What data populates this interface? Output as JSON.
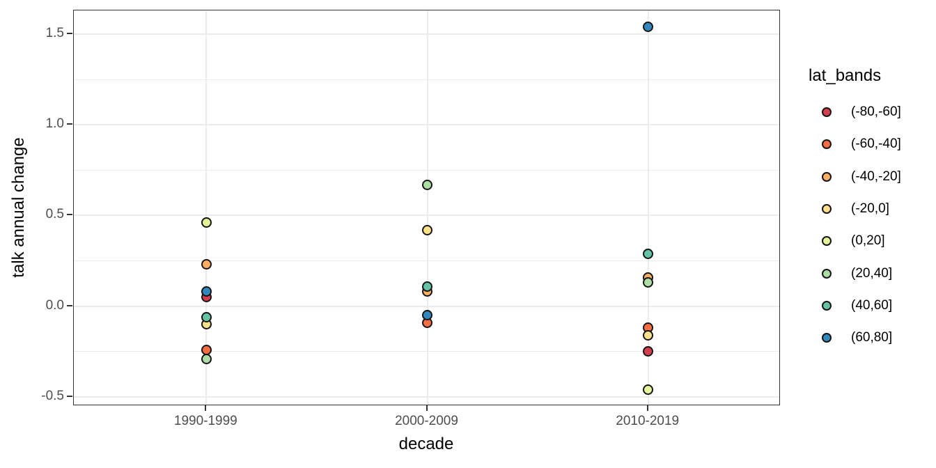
{
  "chart_data": {
    "type": "scatter",
    "title": "",
    "xlabel": "decade",
    "ylabel": "talk annual change",
    "categories": [
      "1990-1999",
      "2000-2009",
      "2010-2019"
    ],
    "y_major_ticks": [
      -0.5,
      0.0,
      0.5,
      1.0,
      1.5
    ],
    "y_tick_labels": [
      "-0.5",
      "0.0",
      "0.5",
      "1.0",
      "1.5"
    ],
    "y_minor_ticks": [
      -0.25,
      0.25,
      0.75,
      1.25
    ],
    "ylim": [
      -0.55,
      1.63
    ],
    "grid": "major and minor horizontal, major vertical at each category",
    "legend_position": "right",
    "legend_title": "lat_bands",
    "point_style": "filled circle with black outline",
    "colors": {
      "grid": "#ebebeb",
      "panel_border": "#333333",
      "axis_text": "#4d4d4d",
      "axis_title": "#000000"
    },
    "series": [
      {
        "name": "(-80,-60]",
        "color": "#D53E4F",
        "points": [
          {
            "decade": "1990-1999",
            "value": 0.05
          },
          {
            "decade": "2010-2019",
            "value": -0.25
          }
        ]
      },
      {
        "name": "(-60,-40]",
        "color": "#F46D43",
        "points": [
          {
            "decade": "1990-1999",
            "value": -0.24
          },
          {
            "decade": "2000-2009",
            "value": -0.09
          },
          {
            "decade": "2010-2019",
            "value": -0.12
          }
        ]
      },
      {
        "name": "(-40,-20]",
        "color": "#FDAE61",
        "points": [
          {
            "decade": "1990-1999",
            "value": 0.23
          },
          {
            "decade": "2000-2009",
            "value": 0.08
          },
          {
            "decade": "2010-2019",
            "value": 0.16
          }
        ]
      },
      {
        "name": "(-20,0]",
        "color": "#FEE08B",
        "points": [
          {
            "decade": "1990-1999",
            "value": -0.1
          },
          {
            "decade": "2000-2009",
            "value": 0.42
          },
          {
            "decade": "2010-2019",
            "value": -0.16
          }
        ]
      },
      {
        "name": "(0,20]",
        "color": "#E6F598",
        "points": [
          {
            "decade": "1990-1999",
            "value": 0.46
          },
          {
            "decade": "2010-2019",
            "value": -0.46
          }
        ]
      },
      {
        "name": "(20,40]",
        "color": "#ABDDA4",
        "points": [
          {
            "decade": "1990-1999",
            "value": -0.29
          },
          {
            "decade": "2000-2009",
            "value": 0.67
          },
          {
            "decade": "2010-2019",
            "value": 0.13
          }
        ]
      },
      {
        "name": "(40,60]",
        "color": "#66C2A5",
        "points": [
          {
            "decade": "1990-1999",
            "value": -0.06
          },
          {
            "decade": "2000-2009",
            "value": 0.11
          },
          {
            "decade": "2010-2019",
            "value": 0.29
          }
        ]
      },
      {
        "name": "(60,80]",
        "color": "#3288BD",
        "points": [
          {
            "decade": "1990-1999",
            "value": 0.08
          },
          {
            "decade": "2000-2009",
            "value": -0.05
          },
          {
            "decade": "2010-2019",
            "value": 1.54
          }
        ]
      }
    ]
  }
}
